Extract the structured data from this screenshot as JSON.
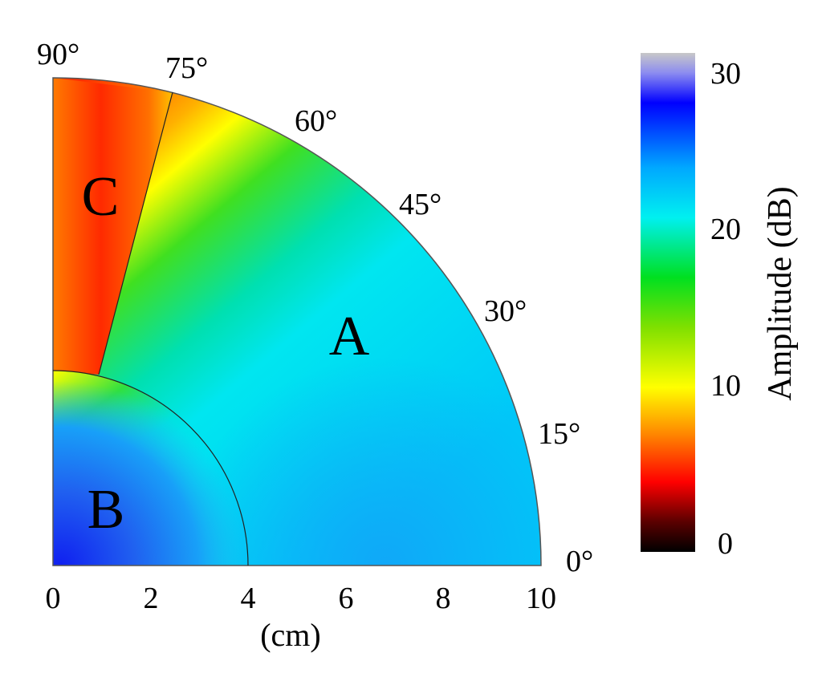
{
  "chart_data": {
    "type": "heatmap",
    "title": "",
    "subtitle": "",
    "xlabel": "(cm)",
    "xlim": [
      0,
      10
    ],
    "xticks": [
      "0",
      "2",
      "4",
      "6",
      "8",
      "10"
    ],
    "angle_ticks": [
      "0°",
      "15°",
      "30°",
      "45°",
      "60°",
      "75°",
      "90°"
    ],
    "angle_ticks_deg": [
      0,
      15,
      30,
      45,
      60,
      75,
      90
    ],
    "region_labels": [
      "A",
      "B",
      "C"
    ],
    "region_b_radius_cm": 4,
    "region_c_boundary_deg": 75,
    "colorbar": {
      "label": "Amplitude (dB)",
      "range": [
        0,
        30
      ],
      "ticks": [
        "0",
        "10",
        "20",
        "30"
      ],
      "colors": [
        "#000000",
        "#ff0000",
        "#ffff00",
        "#00e000",
        "#00f0f0",
        "#0000ff",
        "#c8c8c8"
      ]
    },
    "regions": [
      {
        "name": "A",
        "approx_amplitude_db": 20
      },
      {
        "name": "B",
        "approx_amplitude_db": 24
      },
      {
        "name": "C",
        "approx_amplitude_db": 5
      }
    ]
  }
}
